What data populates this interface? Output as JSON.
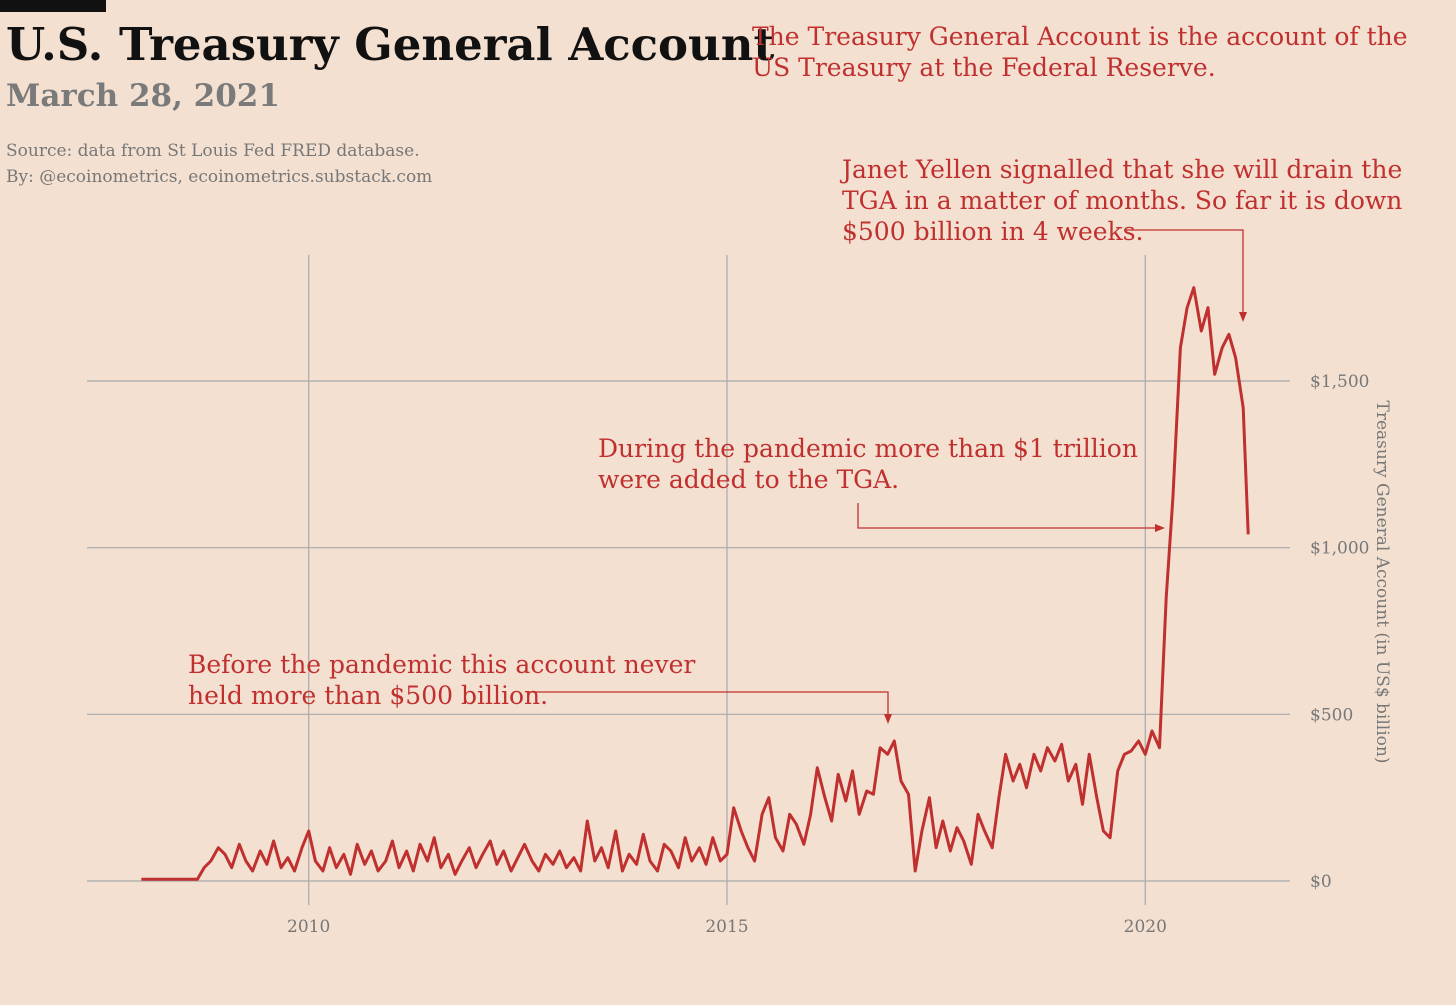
{
  "chart_data": {
    "type": "line",
    "title": "U.S. Treasury General Account",
    "subtitle": "March 28, 2021",
    "source": [
      "Source: data from  St Louis Fed FRED database.",
      "By: @ecoinometrics, ecoinometrics.substack.com"
    ],
    "note": [
      "The Treasury General Account is the account of the",
      "US Treasury at the Federal Reserve."
    ],
    "annotations": [
      [
        "Janet Yellen signalled that she will drain the",
        "TGA in a matter of months. So far it is down",
        "$500 billion in 4 weeks."
      ],
      [
        "During the pandemic more than $1 trillion",
        "were added to the TGA."
      ],
      [
        "Before the pandemic this account never",
        "held more than $500 billion."
      ]
    ],
    "y_label": "Treasury General Account (in US$ billion)",
    "color": "#c0302f",
    "grid": true,
    "xlim": [
      2007.35,
      2021.73
    ],
    "xticks": [
      2010,
      2015,
      2020
    ],
    "ylim": [
      -72,
      1878
    ],
    "yticks": [
      {
        "value": 0,
        "label": "$0"
      },
      {
        "value": 500,
        "label": "$500"
      },
      {
        "value": 1000,
        "label": "$1,000"
      },
      {
        "value": 1500,
        "label": "$1,500"
      }
    ],
    "x": [
      2008.0,
      2008.08,
      2008.17,
      2008.25,
      2008.33,
      2008.42,
      2008.5,
      2008.58,
      2008.67,
      2008.75,
      2008.83,
      2008.92,
      2009.0,
      2009.08,
      2009.17,
      2009.25,
      2009.33,
      2009.42,
      2009.5,
      2009.58,
      2009.67,
      2009.75,
      2009.83,
      2009.92,
      2010.0,
      2010.08,
      2010.17,
      2010.25,
      2010.33,
      2010.42,
      2010.5,
      2010.58,
      2010.67,
      2010.75,
      2010.83,
      2010.92,
      2011.0,
      2011.08,
      2011.17,
      2011.25,
      2011.33,
      2011.42,
      2011.5,
      2011.58,
      2011.67,
      2011.75,
      2011.83,
      2011.92,
      2012.0,
      2012.08,
      2012.17,
      2012.25,
      2012.33,
      2012.42,
      2012.5,
      2012.58,
      2012.67,
      2012.75,
      2012.83,
      2012.92,
      2013.0,
      2013.08,
      2013.17,
      2013.25,
      2013.33,
      2013.42,
      2013.5,
      2013.58,
      2013.67,
      2013.75,
      2013.83,
      2013.92,
      2014.0,
      2014.08,
      2014.17,
      2014.25,
      2014.33,
      2014.42,
      2014.5,
      2014.58,
      2014.67,
      2014.75,
      2014.83,
      2014.92,
      2015.0,
      2015.08,
      2015.17,
      2015.25,
      2015.33,
      2015.42,
      2015.5,
      2015.58,
      2015.67,
      2015.75,
      2015.83,
      2015.92,
      2016.0,
      2016.08,
      2016.17,
      2016.25,
      2016.33,
      2016.42,
      2016.5,
      2016.58,
      2016.67,
      2016.75,
      2016.83,
      2016.92,
      2017.0,
      2017.08,
      2017.17,
      2017.25,
      2017.33,
      2017.42,
      2017.5,
      2017.58,
      2017.67,
      2017.75,
      2017.83,
      2017.92,
      2018.0,
      2018.08,
      2018.17,
      2018.25,
      2018.33,
      2018.42,
      2018.5,
      2018.58,
      2018.67,
      2018.75,
      2018.83,
      2018.92,
      2019.0,
      2019.08,
      2019.17,
      2019.25,
      2019.33,
      2019.42,
      2019.5,
      2019.58,
      2019.67,
      2019.75,
      2019.83,
      2019.92,
      2020.0,
      2020.08,
      2020.17,
      2020.25,
      2020.33,
      2020.42,
      2020.5,
      2020.58,
      2020.67,
      2020.75,
      2020.83,
      2020.92,
      2021.0,
      2021.08,
      2021.17,
      2021.23
    ],
    "values": [
      5,
      5,
      5,
      5,
      5,
      5,
      5,
      5,
      5,
      40,
      60,
      100,
      80,
      40,
      110,
      60,
      30,
      90,
      50,
      120,
      40,
      70,
      30,
      100,
      150,
      60,
      30,
      100,
      40,
      80,
      20,
      110,
      50,
      90,
      30,
      60,
      120,
      40,
      90,
      30,
      110,
      60,
      130,
      40,
      80,
      20,
      60,
      100,
      40,
      80,
      120,
      50,
      90,
      30,
      70,
      110,
      60,
      30,
      80,
      50,
      90,
      40,
      70,
      30,
      180,
      60,
      100,
      40,
      150,
      30,
      80,
      50,
      140,
      60,
      30,
      110,
      90,
      40,
      130,
      60,
      100,
      50,
      130,
      60,
      80,
      220,
      150,
      100,
      60,
      200,
      250,
      130,
      90,
      200,
      170,
      110,
      200,
      340,
      250,
      180,
      320,
      240,
      330,
      200,
      270,
      260,
      400,
      380,
      420,
      300,
      260,
      30,
      150,
      250,
      100,
      180,
      90,
      160,
      120,
      50,
      200,
      150,
      100,
      250,
      380,
      300,
      350,
      280,
      380,
      330,
      400,
      360,
      410,
      300,
      350,
      230,
      380,
      250,
      150,
      130,
      330,
      380,
      390,
      420,
      380,
      450,
      400,
      850,
      1150,
      1600,
      1720,
      1780,
      1650,
      1720,
      1520,
      1600,
      1640,
      1570,
      1420,
      1040
    ]
  }
}
